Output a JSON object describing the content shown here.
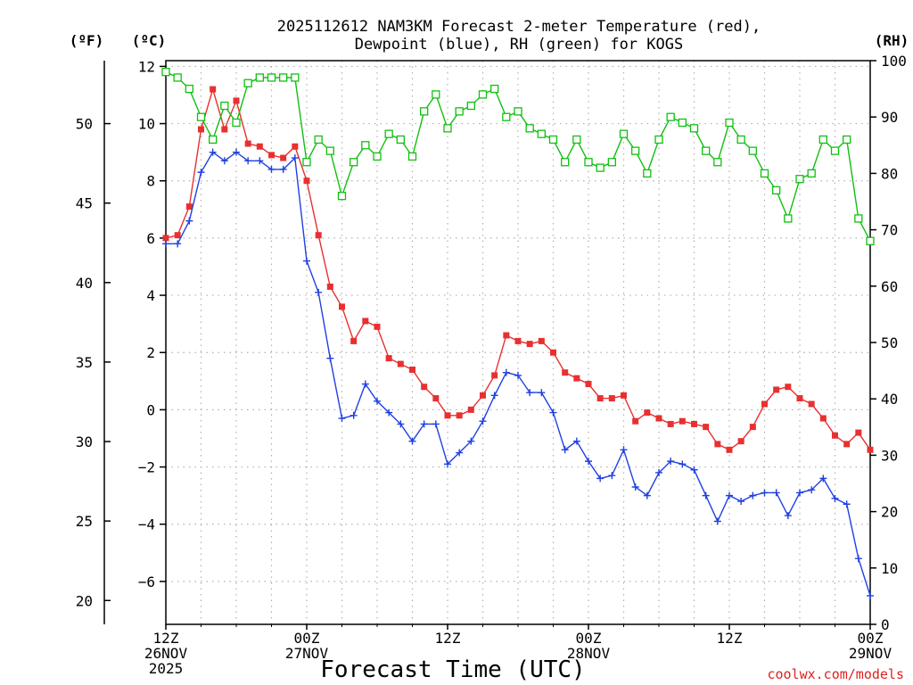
{
  "chart_data": {
    "type": "line",
    "title_line1": "2025112612 NAM3KM Forecast 2-meter Temperature (red),",
    "title_line2": "Dewpoint (blue), RH (green) for KOGS",
    "unit_f": "(ºF)",
    "unit_c": "(ºC)",
    "unit_rh": "(RH)",
    "xlabel": "Forecast Time (UTC)",
    "credit": "coolwx.com/models",
    "x_hours_range": [
      0,
      60
    ],
    "ylim_c": [
      -7.5,
      12.2
    ],
    "ylim_rh": [
      0,
      100
    ],
    "c_ticks": [
      12,
      10,
      8,
      6,
      4,
      2,
      0,
      -2,
      -4,
      -6
    ],
    "c_tick_labels": [
      "12",
      "10",
      "8",
      "6",
      "4",
      "2",
      "0",
      "−2",
      "−4",
      "−6"
    ],
    "f_ticks": [
      50,
      45,
      40,
      35,
      30,
      25,
      20
    ],
    "f_tick_labels": [
      "50",
      "45",
      "40",
      "35",
      "30",
      "25",
      "20"
    ],
    "rh_ticks": [
      100,
      90,
      80,
      70,
      60,
      50,
      40,
      30,
      20,
      10,
      0
    ],
    "rh_tick_labels": [
      "100",
      "90",
      "80",
      "70",
      "60",
      "50",
      "40",
      "30",
      "20",
      "10",
      "0"
    ],
    "x_ticks": [
      {
        "hour": 0,
        "lines": [
          "12Z",
          "26NOV",
          "2025"
        ]
      },
      {
        "hour": 12,
        "lines": [
          "00Z",
          "27NOV"
        ]
      },
      {
        "hour": 24,
        "lines": [
          "12Z"
        ]
      },
      {
        "hour": 36,
        "lines": [
          "00Z",
          "28NOV"
        ]
      },
      {
        "hour": 48,
        "lines": [
          "12Z"
        ]
      },
      {
        "hour": 60,
        "lines": [
          "00Z",
          "29NOV"
        ]
      }
    ],
    "series": [
      {
        "name": "Temperature",
        "unit": "C",
        "color": "#e83030",
        "marker": "filled-square",
        "values": [
          6.0,
          6.1,
          7.1,
          9.8,
          11.2,
          9.8,
          10.8,
          9.3,
          9.2,
          8.9,
          8.8,
          9.2,
          8.0,
          6.1,
          4.3,
          3.6,
          2.4,
          3.1,
          2.9,
          1.8,
          1.6,
          1.4,
          0.8,
          0.4,
          -0.2,
          -0.2,
          0.0,
          0.5,
          1.2,
          2.6,
          2.4,
          2.3,
          2.4,
          2.0,
          1.3,
          1.1,
          0.9,
          0.4,
          0.4,
          0.5,
          -0.4,
          -0.1,
          -0.3,
          -0.5,
          -0.4,
          -0.5,
          -0.6,
          -1.2,
          -1.4,
          -1.1,
          -0.6,
          0.2,
          0.7,
          0.8,
          0.4,
          0.2,
          -0.3,
          -0.9,
          -1.2,
          -0.8,
          -1.4
        ]
      },
      {
        "name": "Dewpoint",
        "unit": "C",
        "color": "#2040e0",
        "marker": "plus",
        "values": [
          5.8,
          5.8,
          6.6,
          8.3,
          9.0,
          8.7,
          9.0,
          8.7,
          8.7,
          8.4,
          8.4,
          8.8,
          5.2,
          4.1,
          1.8,
          -0.3,
          -0.2,
          0.9,
          0.3,
          -0.1,
          -0.5,
          -1.1,
          -0.5,
          -0.5,
          -1.9,
          -1.5,
          -1.1,
          -0.4,
          0.5,
          1.3,
          1.2,
          0.6,
          0.6,
          -0.1,
          -1.4,
          -1.1,
          -1.8,
          -2.4,
          -2.3,
          -1.4,
          -2.7,
          -3.0,
          -2.2,
          -1.8,
          -1.9,
          -2.1,
          -3.0,
          -3.9,
          -3.0,
          -3.2,
          -3.0,
          -2.9,
          -2.9,
          -3.7,
          -2.9,
          -2.8,
          -2.4,
          -3.1,
          -3.3,
          -5.2,
          -6.5
        ]
      },
      {
        "name": "RH",
        "unit": "%",
        "color": "#10c010",
        "marker": "open-square",
        "values": [
          98,
          97,
          95,
          90,
          86,
          92,
          89,
          96,
          97,
          97,
          97,
          97,
          82,
          86,
          84,
          76,
          82,
          85,
          83,
          87,
          86,
          83,
          91,
          94,
          88,
          91,
          92,
          94,
          95,
          90,
          91,
          88,
          87,
          86,
          82,
          86,
          82,
          81,
          82,
          87,
          84,
          80,
          86,
          90,
          89,
          88,
          84,
          82,
          89,
          86,
          84,
          80,
          77,
          72,
          79,
          80,
          86,
          84,
          86,
          72,
          68
        ]
      }
    ]
  }
}
